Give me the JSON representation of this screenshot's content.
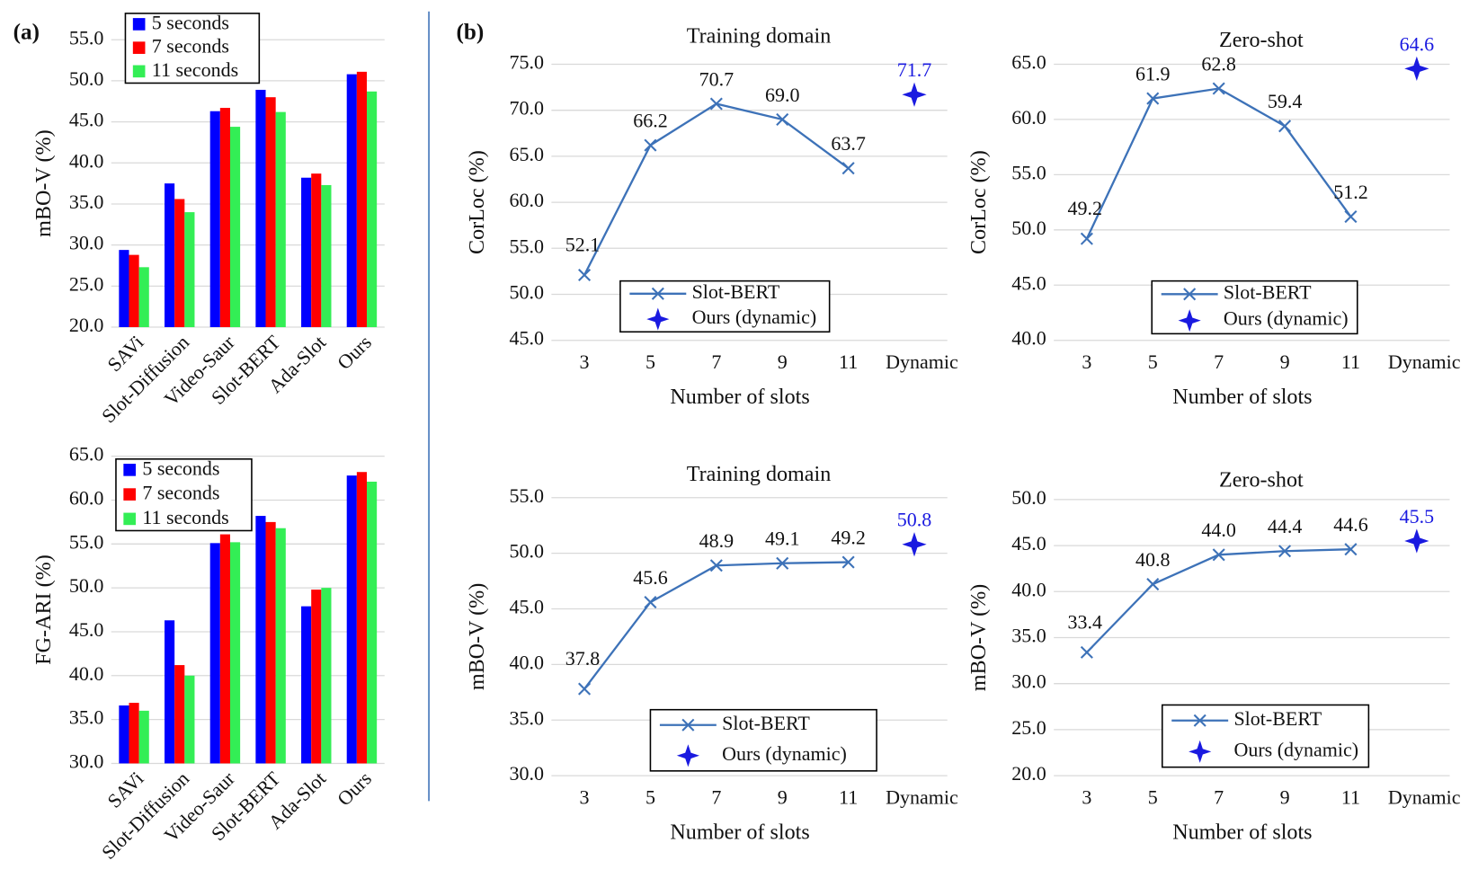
{
  "panels": [
    "(a)",
    "(b)"
  ],
  "chart_data": [
    {
      "type": "bar",
      "ylabel": "mBO-V (%)",
      "categories": [
        "SAVi",
        "Slot-Diffusion",
        "Video-Saur",
        "Slot-BERT",
        "Ada-Slot",
        "Ours"
      ],
      "series": [
        {
          "name": "5 seconds",
          "color": "#0000ff",
          "values": [
            29.4,
            37.5,
            46.3,
            48.9,
            38.2,
            50.8
          ]
        },
        {
          "name": "7 seconds",
          "color": "#ff0000",
          "values": [
            28.8,
            35.6,
            46.7,
            48.0,
            38.7,
            51.1
          ]
        },
        {
          "name": "11 seconds",
          "color": "#33ee55",
          "values": [
            27.3,
            34.0,
            44.4,
            46.2,
            37.3,
            48.7
          ]
        }
      ],
      "ylim": [
        20,
        55
      ],
      "yticks": [
        {
          "value": 20,
          "label": "20.0"
        },
        {
          "value": 25,
          "label": "25.0"
        },
        {
          "value": 30,
          "label": "30.0"
        },
        {
          "value": 35,
          "label": "35.0"
        },
        {
          "value": 40,
          "label": "40.0"
        },
        {
          "value": 45,
          "label": "45.0"
        },
        {
          "value": 50,
          "label": "50.0"
        },
        {
          "value": 55,
          "label": "55.0"
        }
      ],
      "grid": true
    },
    {
      "type": "bar",
      "ylabel": "FG-ARI (%)",
      "categories": [
        "SAVi",
        "Slot-Diffusion",
        "Video-Saur",
        "Slot-BERT",
        "Ada-Slot",
        "Ours"
      ],
      "series": [
        {
          "name": "5 seconds",
          "color": "#0000ff",
          "values": [
            36.6,
            46.3,
            55.1,
            58.2,
            47.9,
            62.8
          ]
        },
        {
          "name": "7 seconds",
          "color": "#ff0000",
          "values": [
            36.9,
            41.2,
            56.1,
            57.5,
            49.8,
            63.2
          ]
        },
        {
          "name": "11 seconds",
          "color": "#33ee55",
          "values": [
            36.0,
            40.0,
            55.2,
            56.8,
            50.0,
            62.1
          ]
        }
      ],
      "ylim": [
        30,
        65
      ],
      "yticks": [
        {
          "value": 30,
          "label": "30.0"
        },
        {
          "value": 35,
          "label": "35.0"
        },
        {
          "value": 40,
          "label": "40.0"
        },
        {
          "value": 45,
          "label": "45.0"
        },
        {
          "value": 50,
          "label": "50.0"
        },
        {
          "value": 55,
          "label": "55.0"
        },
        {
          "value": 60,
          "label": "60.0"
        },
        {
          "value": 65,
          "label": "65.0"
        }
      ],
      "grid": true
    },
    {
      "type": "line",
      "title": "Training domain",
      "xlabel": "Number of slots",
      "ylabel": "CorLoc (%)",
      "categories": [
        "3",
        "5",
        "7",
        "9",
        "11",
        "Dynamic"
      ],
      "series": [
        {
          "name": "Slot-BERT",
          "color": "#3d72b8",
          "marker": "x",
          "values": [
            52.1,
            66.2,
            70.7,
            69.0,
            63.7,
            null
          ],
          "value_labels": [
            "52.1",
            "66.2",
            "70.7",
            "69.0",
            "63.7",
            null
          ]
        },
        {
          "name": "Ours (dynamic)",
          "color": "#1a1ae0",
          "marker": "star",
          "values": [
            null,
            null,
            null,
            null,
            null,
            71.7
          ],
          "value_labels": [
            null,
            null,
            null,
            null,
            null,
            "71.7"
          ]
        }
      ],
      "ylim": [
        45,
        75
      ],
      "yticks": [
        {
          "value": 45,
          "label": "45.0"
        },
        {
          "value": 50,
          "label": "50.0"
        },
        {
          "value": 55,
          "label": "55.0"
        },
        {
          "value": 60,
          "label": "60.0"
        },
        {
          "value": 65,
          "label": "65.0"
        },
        {
          "value": 70,
          "label": "70.0"
        },
        {
          "value": 75,
          "label": "75.0"
        }
      ],
      "grid": true
    },
    {
      "type": "line",
      "title": "Zero-shot",
      "xlabel": "Number of slots",
      "ylabel": "CorLoc (%)",
      "categories": [
        "3",
        "5",
        "7",
        "9",
        "11",
        "Dynamic"
      ],
      "series": [
        {
          "name": "Slot-BERT",
          "color": "#3d72b8",
          "marker": "x",
          "values": [
            49.2,
            61.9,
            62.8,
            59.4,
            51.2,
            null
          ],
          "value_labels": [
            "49.2",
            "61.9",
            "62.8",
            "59.4",
            "51.2",
            null
          ]
        },
        {
          "name": "Ours (dynamic)",
          "color": "#1a1ae0",
          "marker": "star",
          "values": [
            null,
            null,
            null,
            null,
            null,
            64.6
          ],
          "value_labels": [
            null,
            null,
            null,
            null,
            null,
            "64.6"
          ]
        }
      ],
      "ylim": [
        40,
        65
      ],
      "yticks": [
        {
          "value": 40,
          "label": "40.0"
        },
        {
          "value": 45,
          "label": "45.0"
        },
        {
          "value": 50,
          "label": "50.0"
        },
        {
          "value": 55,
          "label": "55.0"
        },
        {
          "value": 60,
          "label": "60.0"
        },
        {
          "value": 65,
          "label": "65.0"
        }
      ],
      "grid": true
    },
    {
      "type": "line",
      "title": "Training domain",
      "xlabel": "Number of slots",
      "ylabel": "mBO-V (%)",
      "categories": [
        "3",
        "5",
        "7",
        "9",
        "11",
        "Dynamic"
      ],
      "series": [
        {
          "name": "Slot-BERT",
          "color": "#3d72b8",
          "marker": "x",
          "values": [
            37.8,
            45.6,
            48.9,
            49.1,
            49.2,
            null
          ],
          "value_labels": [
            "37.8",
            "45.6",
            "48.9",
            "49.1",
            "49.2",
            null
          ]
        },
        {
          "name": "Ours (dynamic)",
          "color": "#1a1ae0",
          "marker": "star",
          "values": [
            null,
            null,
            null,
            null,
            null,
            50.8
          ],
          "value_labels": [
            null,
            null,
            null,
            null,
            null,
            "50.8"
          ]
        }
      ],
      "ylim": [
        30,
        55
      ],
      "yticks": [
        {
          "value": 30,
          "label": "30.0"
        },
        {
          "value": 35,
          "label": "35.0"
        },
        {
          "value": 40,
          "label": "40.0"
        },
        {
          "value": 45,
          "label": "45.0"
        },
        {
          "value": 50,
          "label": "50.0"
        },
        {
          "value": 55,
          "label": "55.0"
        }
      ],
      "grid": true
    },
    {
      "type": "line",
      "title": "Zero-shot",
      "xlabel": "Number of slots",
      "ylabel": "mBO-V (%)",
      "categories": [
        "3",
        "5",
        "7",
        "9",
        "11",
        "Dynamic"
      ],
      "series": [
        {
          "name": "Slot-BERT",
          "color": "#3d72b8",
          "marker": "x",
          "values": [
            33.4,
            40.8,
            44.0,
            44.4,
            44.6,
            null
          ],
          "value_labels": [
            "33.4",
            "40.8",
            "44.0",
            "44.4",
            "44.6",
            null
          ]
        },
        {
          "name": "Ours (dynamic)",
          "color": "#1a1ae0",
          "marker": "star",
          "values": [
            null,
            null,
            null,
            null,
            null,
            45.5
          ],
          "value_labels": [
            null,
            null,
            null,
            null,
            null,
            "45.5"
          ]
        }
      ],
      "ylim": [
        20,
        50
      ],
      "yticks": [
        {
          "value": 20,
          "label": "20.0"
        },
        {
          "value": 25,
          "label": "25.0"
        },
        {
          "value": 30,
          "label": "30.0"
        },
        {
          "value": 35,
          "label": "35.0"
        },
        {
          "value": 40,
          "label": "40.0"
        },
        {
          "value": 45,
          "label": "45.0"
        },
        {
          "value": 50,
          "label": "50.0"
        }
      ],
      "grid": true
    }
  ]
}
